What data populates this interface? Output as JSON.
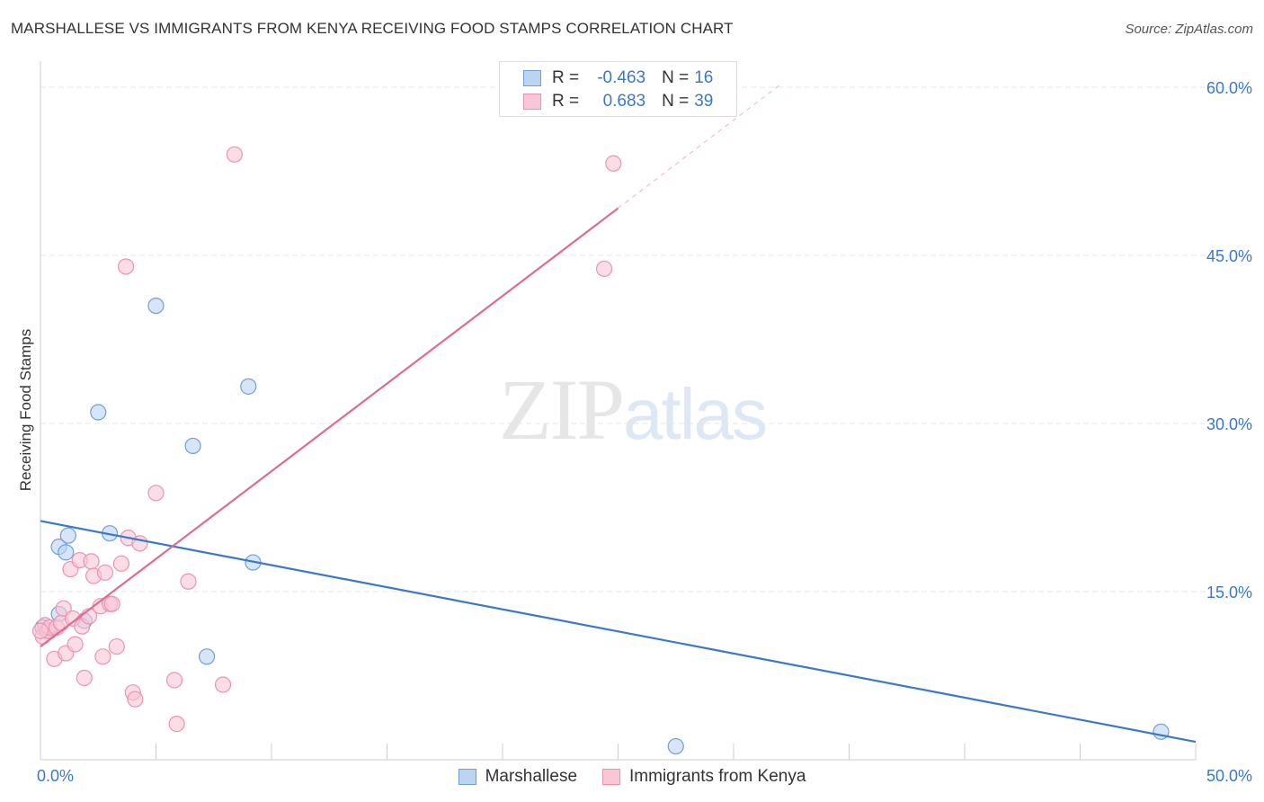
{
  "title": "MARSHALLESE VS IMMIGRANTS FROM KENYA RECEIVING FOOD STAMPS CORRELATION CHART",
  "source": "Source: ZipAtlas.com",
  "watermark": {
    "zip": "ZIP",
    "atlas": "atlas"
  },
  "colors": {
    "blue": "#3a78c9",
    "blue_fill": "#bcd3f2",
    "blue_stroke": "#6f9fd8",
    "pink": "#e06a92",
    "pink_fill": "#f8c6d5",
    "pink_stroke": "#ec93b1",
    "grid": "#e6e6e6",
    "axis_text": "#3a78c9"
  },
  "legend": {
    "rows": [
      {
        "r_label": "R =",
        "r_value": "-0.463",
        "n_label": "N =",
        "n_value": "16"
      },
      {
        "r_label": "R =",
        "r_value": "0.683",
        "n_label": "N =",
        "n_value": "39"
      }
    ]
  },
  "bottom_legend": [
    "Marshallese",
    "Immigrants from Kenya"
  ],
  "chart_data": {
    "type": "scatter",
    "title": "MARSHALLESE VS IMMIGRANTS FROM KENYA RECEIVING FOOD STAMPS CORRELATION CHART",
    "xlabel": "",
    "ylabel": "Receiving Food Stamps",
    "xlim": [
      0,
      50
    ],
    "ylim": [
      0,
      60
    ],
    "x_tick_labels": [
      "0.0%",
      "50.0%"
    ],
    "y_ticks": [
      15,
      30,
      45,
      60
    ],
    "y_tick_labels": [
      "15.0%",
      "30.0%",
      "45.0%",
      "60.0%"
    ],
    "grid": true,
    "legend_position": "top-center",
    "series": [
      {
        "name": "Marshallese",
        "r": -0.463,
        "n": 16,
        "points": [
          [
            0.1,
            11.8
          ],
          [
            0.4,
            11.5
          ],
          [
            0.8,
            13.0
          ],
          [
            0.8,
            19.0
          ],
          [
            1.1,
            18.5
          ],
          [
            1.2,
            20.0
          ],
          [
            1.9,
            12.4
          ],
          [
            2.5,
            31.0
          ],
          [
            3.0,
            20.2
          ],
          [
            5.0,
            40.5
          ],
          [
            6.6,
            28.0
          ],
          [
            7.2,
            9.2
          ],
          [
            9.0,
            33.3
          ],
          [
            9.2,
            17.6
          ],
          [
            27.5,
            1.2
          ],
          [
            48.5,
            2.5
          ]
        ],
        "trend": [
          [
            0,
            21.3
          ],
          [
            50,
            1.6
          ]
        ]
      },
      {
        "name": "Immigrants from Kenya",
        "r": 0.683,
        "n": 39,
        "points": [
          [
            0.1,
            11.0
          ],
          [
            0.2,
            12.0
          ],
          [
            0.3,
            11.5
          ],
          [
            0.4,
            11.8
          ],
          [
            0.6,
            9.0
          ],
          [
            0.7,
            11.8
          ],
          [
            0.9,
            12.2
          ],
          [
            1.0,
            13.5
          ],
          [
            1.1,
            9.5
          ],
          [
            1.3,
            17.0
          ],
          [
            1.4,
            12.6
          ],
          [
            1.5,
            10.3
          ],
          [
            1.7,
            17.8
          ],
          [
            1.8,
            11.9
          ],
          [
            1.9,
            7.3
          ],
          [
            2.1,
            12.8
          ],
          [
            2.2,
            17.7
          ],
          [
            2.3,
            16.4
          ],
          [
            2.6,
            13.7
          ],
          [
            2.7,
            9.2
          ],
          [
            2.8,
            16.7
          ],
          [
            3.0,
            13.9
          ],
          [
            3.1,
            13.9
          ],
          [
            3.3,
            10.1
          ],
          [
            3.5,
            17.5
          ],
          [
            3.7,
            44.0
          ],
          [
            3.8,
            19.8
          ],
          [
            4.0,
            6.0
          ],
          [
            4.1,
            5.4
          ],
          [
            4.3,
            19.3
          ],
          [
            5.0,
            23.8
          ],
          [
            5.8,
            7.1
          ],
          [
            5.9,
            3.2
          ],
          [
            6.4,
            15.9
          ],
          [
            7.9,
            6.7
          ],
          [
            8.4,
            54.0
          ],
          [
            24.4,
            43.8
          ],
          [
            24.8,
            53.2
          ],
          [
            0.0,
            11.5
          ]
        ],
        "trend": [
          [
            0,
            10.1
          ],
          [
            25,
            49.2
          ]
        ],
        "trend_extension": [
          [
            25,
            49.2
          ],
          [
            32,
            60.2
          ]
        ]
      }
    ]
  }
}
